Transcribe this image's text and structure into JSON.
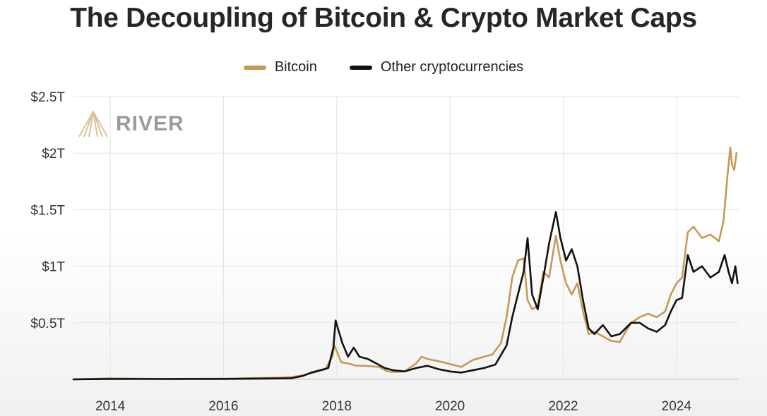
{
  "title": "The Decoupling of Bitcoin & Crypto Market Caps",
  "watermark": "RIVER",
  "colors": {
    "bitcoin": "#C49A55",
    "other": "#111111",
    "grid": "#e3e3e3"
  },
  "chart_data": {
    "type": "line",
    "title": "The Decoupling of Bitcoin & Crypto Market Caps",
    "xlabel": "",
    "ylabel": "",
    "x_ticks": [
      "2014",
      "2016",
      "2018",
      "2020",
      "2022",
      "2024"
    ],
    "y_ticks": [
      "$0.5T",
      "$1T",
      "$1.5T",
      "$2T",
      "$2.5T"
    ],
    "xlim": [
      2013.35,
      2025.1
    ],
    "ylim": [
      0,
      2.5
    ],
    "y_unit": "trillion USD",
    "grid": true,
    "legend_position": "top-center",
    "series": [
      {
        "name": "Bitcoin",
        "color": "#C49A55",
        "points": [
          [
            2013.35,
            0.0
          ],
          [
            2014.0,
            0.008
          ],
          [
            2015.0,
            0.004
          ],
          [
            2016.0,
            0.006
          ],
          [
            2017.0,
            0.015
          ],
          [
            2017.2,
            0.02
          ],
          [
            2017.4,
            0.035
          ],
          [
            2017.6,
            0.06
          ],
          [
            2017.8,
            0.09
          ],
          [
            2017.92,
            0.2
          ],
          [
            2017.96,
            0.3
          ],
          [
            2018.0,
            0.25
          ],
          [
            2018.08,
            0.15
          ],
          [
            2018.2,
            0.14
          ],
          [
            2018.35,
            0.12
          ],
          [
            2018.5,
            0.12
          ],
          [
            2018.75,
            0.11
          ],
          [
            2018.9,
            0.07
          ],
          [
            2019.0,
            0.065
          ],
          [
            2019.2,
            0.07
          ],
          [
            2019.4,
            0.14
          ],
          [
            2019.5,
            0.2
          ],
          [
            2019.6,
            0.18
          ],
          [
            2019.8,
            0.16
          ],
          [
            2020.0,
            0.135
          ],
          [
            2020.2,
            0.11
          ],
          [
            2020.4,
            0.17
          ],
          [
            2020.6,
            0.2
          ],
          [
            2020.75,
            0.22
          ],
          [
            2020.9,
            0.32
          ],
          [
            2021.0,
            0.55
          ],
          [
            2021.1,
            0.9
          ],
          [
            2021.2,
            1.05
          ],
          [
            2021.3,
            1.07
          ],
          [
            2021.37,
            0.7
          ],
          [
            2021.45,
            0.62
          ],
          [
            2021.55,
            0.65
          ],
          [
            2021.65,
            0.95
          ],
          [
            2021.75,
            0.9
          ],
          [
            2021.87,
            1.27
          ],
          [
            2021.95,
            1.05
          ],
          [
            2022.05,
            0.85
          ],
          [
            2022.15,
            0.75
          ],
          [
            2022.25,
            0.85
          ],
          [
            2022.35,
            0.6
          ],
          [
            2022.45,
            0.4
          ],
          [
            2022.55,
            0.42
          ],
          [
            2022.7,
            0.38
          ],
          [
            2022.85,
            0.34
          ],
          [
            2023.0,
            0.33
          ],
          [
            2023.1,
            0.42
          ],
          [
            2023.2,
            0.5
          ],
          [
            2023.35,
            0.55
          ],
          [
            2023.5,
            0.58
          ],
          [
            2023.65,
            0.55
          ],
          [
            2023.8,
            0.6
          ],
          [
            2023.9,
            0.75
          ],
          [
            2024.0,
            0.85
          ],
          [
            2024.1,
            0.9
          ],
          [
            2024.2,
            1.3
          ],
          [
            2024.3,
            1.35
          ],
          [
            2024.45,
            1.25
          ],
          [
            2024.6,
            1.28
          ],
          [
            2024.75,
            1.22
          ],
          [
            2024.83,
            1.4
          ],
          [
            2024.9,
            1.8
          ],
          [
            2024.95,
            2.05
          ],
          [
            2024.98,
            1.9
          ],
          [
            2025.02,
            1.85
          ],
          [
            2025.06,
            2.0
          ]
        ]
      },
      {
        "name": "Other cryptocurrencies",
        "color": "#111111",
        "points": [
          [
            2013.35,
            0.0
          ],
          [
            2014.0,
            0.004
          ],
          [
            2015.0,
            0.003
          ],
          [
            2016.0,
            0.004
          ],
          [
            2017.0,
            0.008
          ],
          [
            2017.2,
            0.01
          ],
          [
            2017.4,
            0.03
          ],
          [
            2017.55,
            0.06
          ],
          [
            2017.7,
            0.08
          ],
          [
            2017.85,
            0.1
          ],
          [
            2017.94,
            0.28
          ],
          [
            2017.98,
            0.52
          ],
          [
            2018.02,
            0.45
          ],
          [
            2018.1,
            0.32
          ],
          [
            2018.2,
            0.2
          ],
          [
            2018.3,
            0.28
          ],
          [
            2018.4,
            0.2
          ],
          [
            2018.55,
            0.18
          ],
          [
            2018.7,
            0.14
          ],
          [
            2018.85,
            0.1
          ],
          [
            2019.0,
            0.08
          ],
          [
            2019.2,
            0.07
          ],
          [
            2019.4,
            0.1
          ],
          [
            2019.6,
            0.12
          ],
          [
            2019.8,
            0.09
          ],
          [
            2020.0,
            0.07
          ],
          [
            2020.2,
            0.06
          ],
          [
            2020.4,
            0.08
          ],
          [
            2020.6,
            0.1
          ],
          [
            2020.8,
            0.13
          ],
          [
            2021.0,
            0.3
          ],
          [
            2021.1,
            0.55
          ],
          [
            2021.2,
            0.75
          ],
          [
            2021.3,
            0.95
          ],
          [
            2021.37,
            1.25
          ],
          [
            2021.45,
            0.75
          ],
          [
            2021.55,
            0.62
          ],
          [
            2021.65,
            0.9
          ],
          [
            2021.75,
            1.2
          ],
          [
            2021.87,
            1.48
          ],
          [
            2021.95,
            1.25
          ],
          [
            2022.05,
            1.05
          ],
          [
            2022.15,
            1.15
          ],
          [
            2022.25,
            1.0
          ],
          [
            2022.35,
            0.7
          ],
          [
            2022.45,
            0.45
          ],
          [
            2022.55,
            0.4
          ],
          [
            2022.7,
            0.48
          ],
          [
            2022.85,
            0.38
          ],
          [
            2023.0,
            0.4
          ],
          [
            2023.1,
            0.45
          ],
          [
            2023.2,
            0.5
          ],
          [
            2023.35,
            0.5
          ],
          [
            2023.5,
            0.45
          ],
          [
            2023.65,
            0.42
          ],
          [
            2023.8,
            0.48
          ],
          [
            2023.9,
            0.6
          ],
          [
            2024.0,
            0.7
          ],
          [
            2024.1,
            0.72
          ],
          [
            2024.2,
            1.1
          ],
          [
            2024.3,
            0.95
          ],
          [
            2024.45,
            1.0
          ],
          [
            2024.6,
            0.9
          ],
          [
            2024.75,
            0.95
          ],
          [
            2024.85,
            1.1
          ],
          [
            2024.92,
            0.95
          ],
          [
            2024.98,
            0.85
          ],
          [
            2025.04,
            1.0
          ],
          [
            2025.08,
            0.85
          ]
        ]
      }
    ]
  }
}
